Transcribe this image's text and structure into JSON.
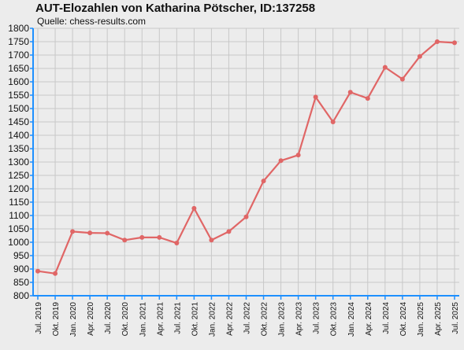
{
  "chart_data": {
    "type": "line",
    "title": "AUT-Elozahlen von Katharina Pötscher, ID:137258",
    "subtitle": "Quelle: chess-results.com",
    "xlabel": "",
    "ylabel": "",
    "ylim": [
      800,
      1800
    ],
    "ytick_step": 50,
    "grid": true,
    "categories": [
      "Jul. 2019",
      "Okt. 2019",
      "Jan. 2020",
      "Apr. 2020",
      "Jul. 2020",
      "Okt. 2020",
      "Jan. 2021",
      "Apr. 2021",
      "Jul. 2021",
      "Okt. 2021",
      "Jan. 2022",
      "Apr. 2022",
      "Jul. 2022",
      "Okt. 2022",
      "Jan. 2023",
      "Apr. 2023",
      "Jul. 2023",
      "Okt. 2023",
      "Jan. 2024",
      "Apr. 2024",
      "Jul. 2024",
      "Okt. 2024",
      "Jan. 2025",
      "Apr. 2025",
      "Jul. 2025"
    ],
    "series": [
      {
        "values": [
          892,
          883,
          1040,
          1035,
          1034,
          1008,
          1018,
          1018,
          997,
          1127,
          1008,
          1040,
          1095,
          1229,
          1305,
          1326,
          1543,
          1450,
          1561,
          1538,
          1654,
          1610,
          1695,
          1750,
          1746
        ],
        "color": "#e06666"
      }
    ],
    "colors": {
      "axis": "#1e90ff",
      "grid": "#c8c8c8",
      "plot_bg": "#ececec"
    }
  }
}
